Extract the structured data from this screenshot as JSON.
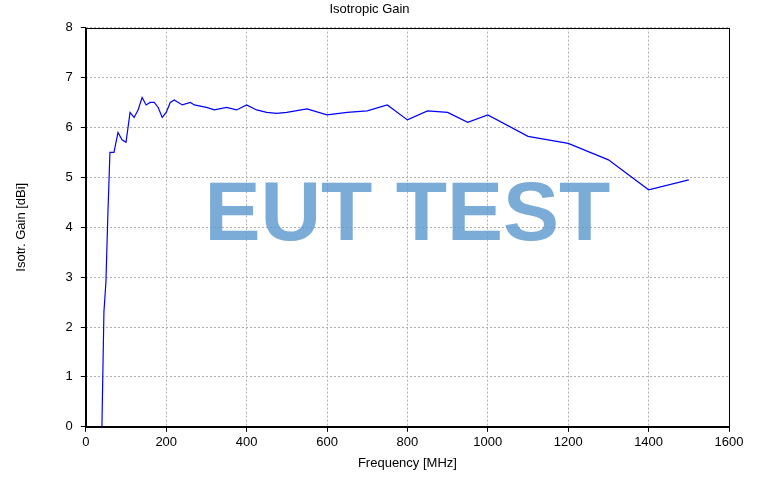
{
  "chart_data": {
    "type": "line",
    "title": "Isotropic Gain",
    "x_label": "Frequency [MHz]",
    "y_label": "Isotr. Gain [dBi]",
    "annotations": [
      "EUT TEST"
    ],
    "x": [
      40,
      45,
      50,
      55,
      60,
      65,
      70,
      80,
      90,
      100,
      110,
      120,
      130,
      140,
      150,
      160,
      170,
      180,
      190,
      200,
      210,
      220,
      240,
      260,
      270,
      300,
      320,
      350,
      375,
      400,
      425,
      450,
      475,
      500,
      550,
      600,
      650,
      700,
      750,
      800,
      850,
      900,
      950,
      1000,
      1100,
      1200,
      1300,
      1400,
      1500
    ],
    "series": [
      {
        "name": "Isotropic Gain",
        "color": "#0000ff",
        "values": [
          0,
          2.3,
          2.9,
          4.3,
          5.5,
          5.5,
          5.5,
          5.9,
          5.75,
          5.7,
          6.3,
          6.2,
          6.35,
          6.6,
          6.45,
          6.5,
          6.5,
          6.4,
          6.2,
          6.3,
          6.5,
          6.55,
          6.45,
          6.5,
          6.45,
          6.4,
          6.35,
          6.4,
          6.35,
          6.45,
          6.35,
          6.3,
          6.28,
          6.3,
          6.37,
          6.25,
          6.3,
          6.33,
          6.45,
          6.15,
          6.33,
          6.3,
          6.1,
          6.25,
          5.82,
          5.68,
          5.35,
          4.75,
          4.95
        ]
      }
    ],
    "xlim": [
      0,
      1600
    ],
    "xticks": [
      0,
      200,
      400,
      600,
      800,
      1000,
      1200,
      1400,
      1600
    ],
    "ylim": [
      0,
      8
    ],
    "yticks": [
      0,
      1,
      2,
      3,
      4,
      5,
      6,
      7,
      8
    ],
    "grid": true
  }
}
